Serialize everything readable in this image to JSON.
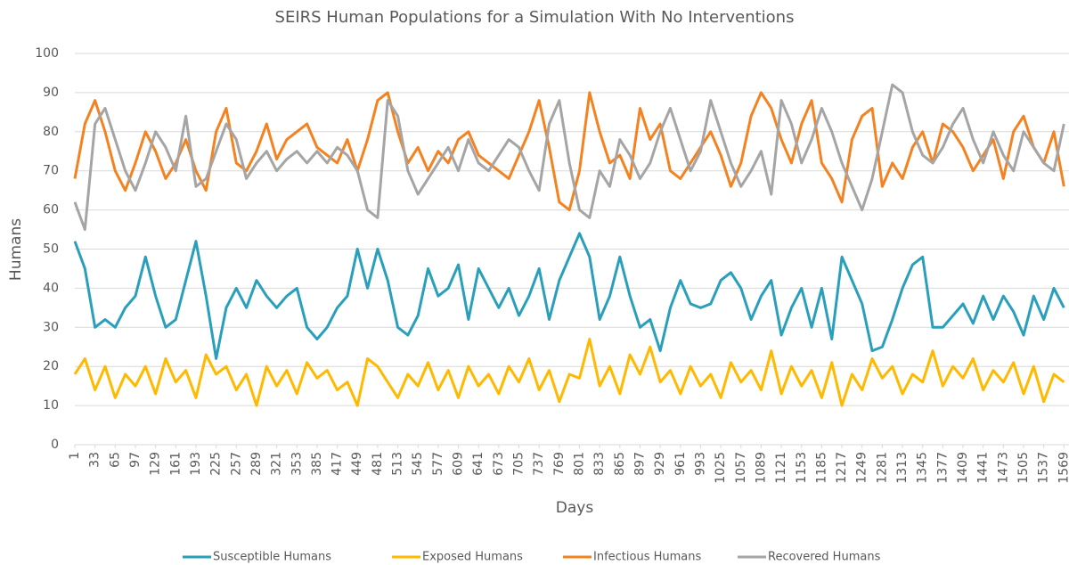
{
  "chart_data": {
    "type": "line",
    "title": "SEIRS Human Populations for a Simulation With No Interventions",
    "x_label": "Days",
    "y_label": "Humans",
    "x": [
      1,
      17,
      33,
      49,
      65,
      81,
      97,
      113,
      129,
      145,
      161,
      177,
      193,
      209,
      225,
      241,
      257,
      273,
      289,
      305,
      321,
      337,
      353,
      369,
      385,
      401,
      417,
      433,
      449,
      465,
      481,
      497,
      513,
      529,
      545,
      561,
      577,
      593,
      609,
      625,
      641,
      657,
      673,
      689,
      705,
      721,
      737,
      753,
      769,
      785,
      801,
      817,
      833,
      849,
      865,
      881,
      897,
      913,
      929,
      945,
      961,
      977,
      993,
      1009,
      1025,
      1041,
      1057,
      1073,
      1089,
      1105,
      1121,
      1137,
      1153,
      1169,
      1185,
      1201,
      1217,
      1233,
      1249,
      1265,
      1281,
      1297,
      1313,
      1329,
      1345,
      1361,
      1377,
      1393,
      1409,
      1425,
      1441,
      1457,
      1473,
      1489,
      1505,
      1521,
      1537,
      1553,
      1569
    ],
    "series": [
      {
        "name": "Susceptible Humans",
        "color": "#2a9fbc",
        "values": [
          52,
          45,
          30,
          32,
          30,
          35,
          38,
          48,
          38,
          30,
          32,
          42,
          52,
          38,
          22,
          35,
          40,
          35,
          42,
          38,
          35,
          38,
          40,
          30,
          27,
          30,
          35,
          38,
          50,
          40,
          50,
          42,
          30,
          28,
          33,
          45,
          38,
          40,
          46,
          32,
          45,
          40,
          35,
          40,
          33,
          38,
          45,
          32,
          42,
          48,
          54,
          48,
          32,
          38,
          48,
          38,
          30,
          32,
          24,
          35,
          42,
          36,
          35,
          36,
          42,
          44,
          40,
          32,
          38,
          42,
          28,
          35,
          40,
          30,
          40,
          27,
          48,
          42,
          36,
          24,
          25,
          32,
          40,
          46,
          48,
          30,
          30,
          33,
          36,
          31,
          38,
          32,
          38,
          34,
          28,
          38,
          32,
          40,
          35
        ]
      },
      {
        "name": "Exposed Humans",
        "color": "#ffb900",
        "values": [
          18,
          22,
          14,
          20,
          12,
          18,
          15,
          20,
          13,
          22,
          16,
          19,
          12,
          23,
          18,
          20,
          14,
          18,
          10,
          20,
          15,
          19,
          13,
          21,
          17,
          19,
          14,
          16,
          10,
          22,
          20,
          16,
          12,
          18,
          15,
          21,
          14,
          19,
          12,
          20,
          15,
          18,
          13,
          20,
          16,
          22,
          14,
          19,
          11,
          18,
          17,
          27,
          15,
          20,
          13,
          23,
          18,
          25,
          16,
          19,
          13,
          20,
          15,
          18,
          12,
          21,
          16,
          19,
          14,
          24,
          13,
          20,
          15,
          19,
          12,
          21,
          10,
          18,
          14,
          22,
          17,
          20,
          13,
          18,
          16,
          24,
          15,
          20,
          17,
          22,
          14,
          19,
          16,
          21,
          13,
          20,
          11,
          18,
          16
        ]
      },
      {
        "name": "Infectious Humans",
        "color": "#f58220",
        "values": [
          68,
          82,
          88,
          80,
          70,
          65,
          72,
          80,
          75,
          68,
          72,
          78,
          70,
          65,
          80,
          86,
          72,
          70,
          75,
          82,
          73,
          78,
          80,
          82,
          76,
          74,
          72,
          78,
          70,
          78,
          88,
          90,
          80,
          72,
          76,
          70,
          75,
          72,
          78,
          80,
          74,
          72,
          70,
          68,
          74,
          80,
          88,
          76,
          62,
          60,
          70,
          90,
          80,
          72,
          74,
          68,
          86,
          78,
          82,
          70,
          68,
          72,
          76,
          80,
          74,
          66,
          72,
          84,
          90,
          86,
          78,
          72,
          82,
          88,
          72,
          68,
          62,
          78,
          84,
          86,
          66,
          72,
          68,
          76,
          80,
          72,
          82,
          80,
          76,
          70,
          74,
          78,
          68,
          80,
          84,
          76,
          72,
          80,
          66
        ]
      },
      {
        "name": "Recovered Humans",
        "color": "#a5a5a5",
        "values": [
          62,
          55,
          82,
          86,
          78,
          70,
          65,
          72,
          80,
          76,
          70,
          84,
          66,
          68,
          75,
          82,
          78,
          68,
          72,
          75,
          70,
          73,
          75,
          72,
          75,
          72,
          76,
          74,
          70,
          60,
          58,
          88,
          84,
          70,
          64,
          68,
          72,
          76,
          70,
          78,
          72,
          70,
          74,
          78,
          76,
          70,
          65,
          82,
          88,
          72,
          60,
          58,
          70,
          66,
          78,
          74,
          68,
          72,
          80,
          86,
          78,
          70,
          75,
          88,
          80,
          72,
          66,
          70,
          75,
          64,
          88,
          82,
          72,
          78,
          86,
          80,
          72,
          66,
          60,
          68,
          80,
          92,
          90,
          80,
          74,
          72,
          76,
          82,
          86,
          78,
          72,
          80,
          74,
          70,
          80,
          76,
          72,
          70,
          82
        ]
      }
    ],
    "xlim": [
      1,
      1577
    ],
    "xticks": [
      1,
      33,
      65,
      97,
      129,
      161,
      193,
      225,
      257,
      289,
      321,
      353,
      385,
      417,
      449,
      481,
      513,
      545,
      577,
      609,
      641,
      673,
      705,
      737,
      769,
      801,
      833,
      865,
      897,
      929,
      961,
      993,
      1025,
      1057,
      1089,
      1121,
      1153,
      1185,
      1217,
      1249,
      1281,
      1313,
      1345,
      1377,
      1409,
      1441,
      1473,
      1505,
      1537,
      1569
    ],
    "ylim": [
      0,
      100
    ],
    "yticks": [
      0,
      10,
      20,
      30,
      40,
      50,
      60,
      70,
      80,
      90,
      100
    ],
    "grid": true,
    "legend": "bottom"
  }
}
